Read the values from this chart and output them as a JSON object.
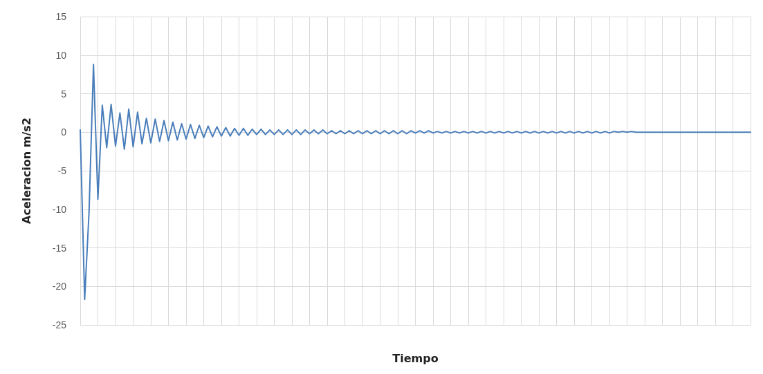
{
  "chart_data": {
    "type": "line",
    "xlabel": "Tiempo",
    "ylabel": "Aceleracion m/s2",
    "categories": [
      null,
      null,
      null,
      null,
      null,
      null,
      null,
      null,
      null,
      null,
      null,
      null,
      null,
      null,
      null,
      null,
      null,
      null,
      null,
      null,
      null,
      null,
      null,
      null,
      null,
      null,
      null,
      null,
      null,
      null,
      null,
      null,
      null,
      null,
      null,
      null,
      null,
      null,
      null,
      null,
      null,
      null,
      null,
      null,
      null,
      null,
      null,
      null,
      null,
      null,
      null,
      null,
      null,
      null,
      null,
      null,
      null,
      null,
      null,
      null,
      null,
      null,
      null,
      null,
      null,
      null,
      null,
      null,
      null,
      null,
      null,
      null,
      null,
      null,
      null,
      null,
      null,
      null,
      null,
      null,
      null,
      null,
      null,
      null,
      null,
      null,
      null,
      null,
      null,
      null,
      null,
      null,
      null,
      null,
      null,
      null,
      null,
      null,
      null,
      null,
      null,
      null,
      null,
      null,
      null,
      null,
      null,
      null,
      null,
      null,
      null,
      null,
      null,
      null,
      null,
      null,
      null,
      null,
      null,
      null,
      null,
      null,
      null,
      null,
      null,
      null,
      null,
      null,
      null,
      null,
      null,
      null,
      null,
      null,
      null,
      null,
      null,
      null,
      null,
      null,
      null,
      null,
      null,
      null,
      null,
      null,
      null,
      null,
      null,
      null,
      null,
      null,
      null
    ],
    "series": [
      {
        "color": "#4a7ebb",
        "values": [
          0.3,
          -21.7,
          -10.3,
          8.8,
          -8.7,
          3.5,
          -2,
          3.6,
          -1.8,
          2.5,
          -2.2,
          3,
          -1.9,
          2.6,
          -1.5,
          1.8,
          -1.4,
          1.7,
          -1.2,
          1.5,
          -1.1,
          1.3,
          -1,
          1.1,
          -0.9,
          1,
          -0.8,
          0.9,
          -0.7,
          0.8,
          -0.6,
          0.7,
          -0.5,
          0.6,
          -0.5,
          0.5,
          -0.4,
          0.5,
          -0.4,
          0.4,
          -0.3,
          0.4,
          -0.3,
          0.3,
          -0.3,
          0.3,
          -0.3,
          0.3,
          -0.3,
          0.3,
          -0.3,
          0.3,
          -0.2,
          0.3,
          -0.2,
          0.3,
          -0.2,
          0.2,
          -0.2,
          0.2,
          -0.2,
          0.2,
          -0.2,
          0.2,
          -0.2,
          0.2,
          -0.2,
          0.2,
          -0.2,
          0.2,
          -0.2,
          0.2,
          -0.2,
          0.2,
          -0.2,
          0.2,
          -0.1,
          0.2,
          -0.1,
          0.2,
          -0.1,
          0.1,
          -0.1,
          0.1,
          -0.1,
          0.1,
          -0.1,
          0.1,
          -0.1,
          0.1,
          -0.1,
          0.1,
          -0.1,
          0.1,
          -0.1,
          0.1,
          -0.1,
          0.1,
          -0.1,
          0.1,
          -0.1,
          0.1,
          -0.1,
          0.1,
          -0.1,
          0.1,
          -0.1,
          0.1,
          -0.1,
          0.1,
          -0.1,
          0.1,
          -0.1,
          0.1,
          -0.1,
          0.1,
          -0.1,
          0.1,
          -0.1,
          0.1,
          -0.1,
          0.1,
          0,
          0.1,
          0,
          0.1,
          0,
          0,
          0,
          0,
          0,
          0,
          0,
          0,
          0,
          0,
          0,
          0,
          0,
          0,
          0,
          0,
          0,
          0,
          0,
          0,
          0,
          0,
          0,
          0,
          0,
          0,
          0
        ]
      }
    ],
    "ylim": [
      -25,
      15
    ],
    "yticks": [
      -25,
      -20,
      -15,
      -10,
      -5,
      0,
      5,
      10,
      15
    ],
    "grid": true,
    "marker": "none",
    "line_style": "solid"
  }
}
